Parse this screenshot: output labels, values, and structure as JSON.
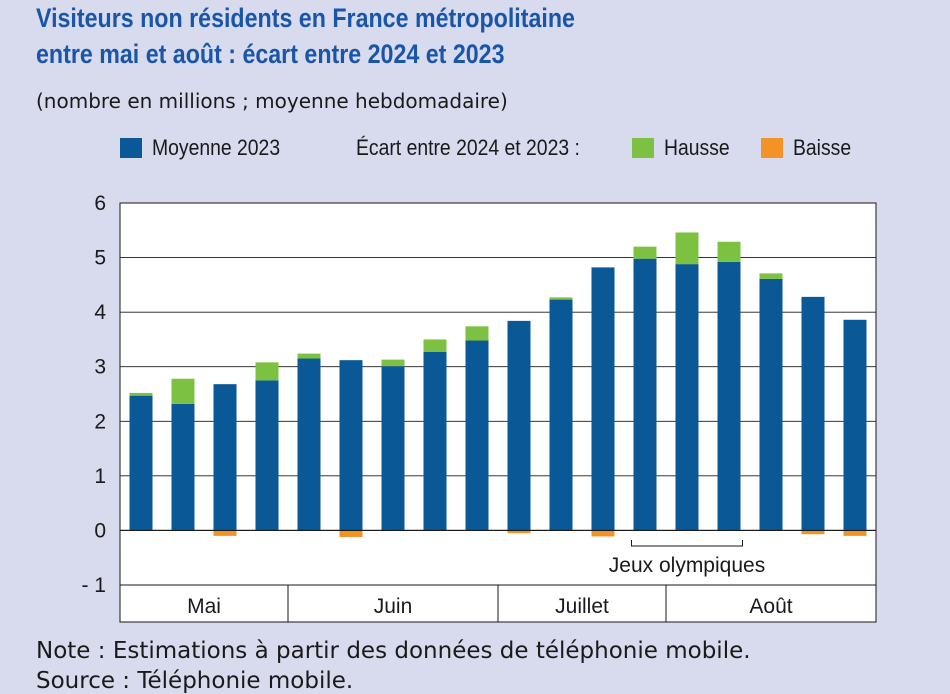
{
  "header": {
    "title_line1": "Visiteurs non résidents en France métropolitaine",
    "title_line2": "entre mai et août : écart entre 2024 et 2023",
    "subtitle": "(nombre en millions ; moyenne hebdomadaire)"
  },
  "legend": {
    "base": "Moyenne 2023",
    "diff_prefix": "Écart entre 2024 et 2023 :",
    "up": "Hausse",
    "down": "Baisse"
  },
  "colors": {
    "base": "#0a5896",
    "up": "#7cc142",
    "down": "#f39325",
    "background": "#d8daed",
    "plot": "#ffffff",
    "title": "#1a56a8"
  },
  "chart_data": {
    "type": "bar",
    "stacked": true,
    "title": "Visiteurs non résidents en France métropolitaine entre mai et août : écart entre 2024 et 2023",
    "ylabel": "nombre en millions ; moyenne hebdomadaire",
    "ylim": [
      -1,
      6
    ],
    "yticks": [
      6,
      5,
      4,
      3,
      2,
      1,
      0,
      -1
    ],
    "ytick_labels": [
      "6",
      "5",
      "4",
      "3",
      "2",
      "1",
      "0",
      "- 1"
    ],
    "week_count": 18,
    "series": [
      {
        "name": "Moyenne 2023",
        "values": [
          2.47,
          2.32,
          2.68,
          2.75,
          3.15,
          3.12,
          3.01,
          3.27,
          3.48,
          3.84,
          4.23,
          4.82,
          4.98,
          4.88,
          4.92,
          4.61,
          4.28,
          3.86
        ]
      },
      {
        "name": "Hausse",
        "values": [
          0.05,
          0.46,
          0.0,
          0.33,
          0.09,
          0.0,
          0.12,
          0.23,
          0.26,
          0.0,
          0.04,
          0.0,
          0.22,
          0.58,
          0.37,
          0.1,
          0.0,
          0.0
        ]
      },
      {
        "name": "Baisse",
        "values": [
          0.0,
          0.0,
          -0.1,
          0.0,
          0.0,
          -0.12,
          0.0,
          0.0,
          0.0,
          -0.05,
          0.0,
          -0.11,
          0.0,
          0.0,
          0.0,
          0.0,
          -0.07,
          -0.1
        ]
      }
    ],
    "months": [
      {
        "label": "Mai",
        "start_week": 0,
        "end_week": 3
      },
      {
        "label": "Juin",
        "start_week": 4,
        "end_week": 8
      },
      {
        "label": "Juillet",
        "start_week": 9,
        "end_week": 12
      },
      {
        "label": "Août",
        "start_week": 13,
        "end_week": 17
      }
    ],
    "annotation": {
      "label": "Jeux olympiques",
      "start_week": 12,
      "end_week": 14
    }
  },
  "footer": {
    "note": "Note : Estimations à partir des données de téléphonie mobile.",
    "source": "Source : Téléphonie mobile."
  }
}
